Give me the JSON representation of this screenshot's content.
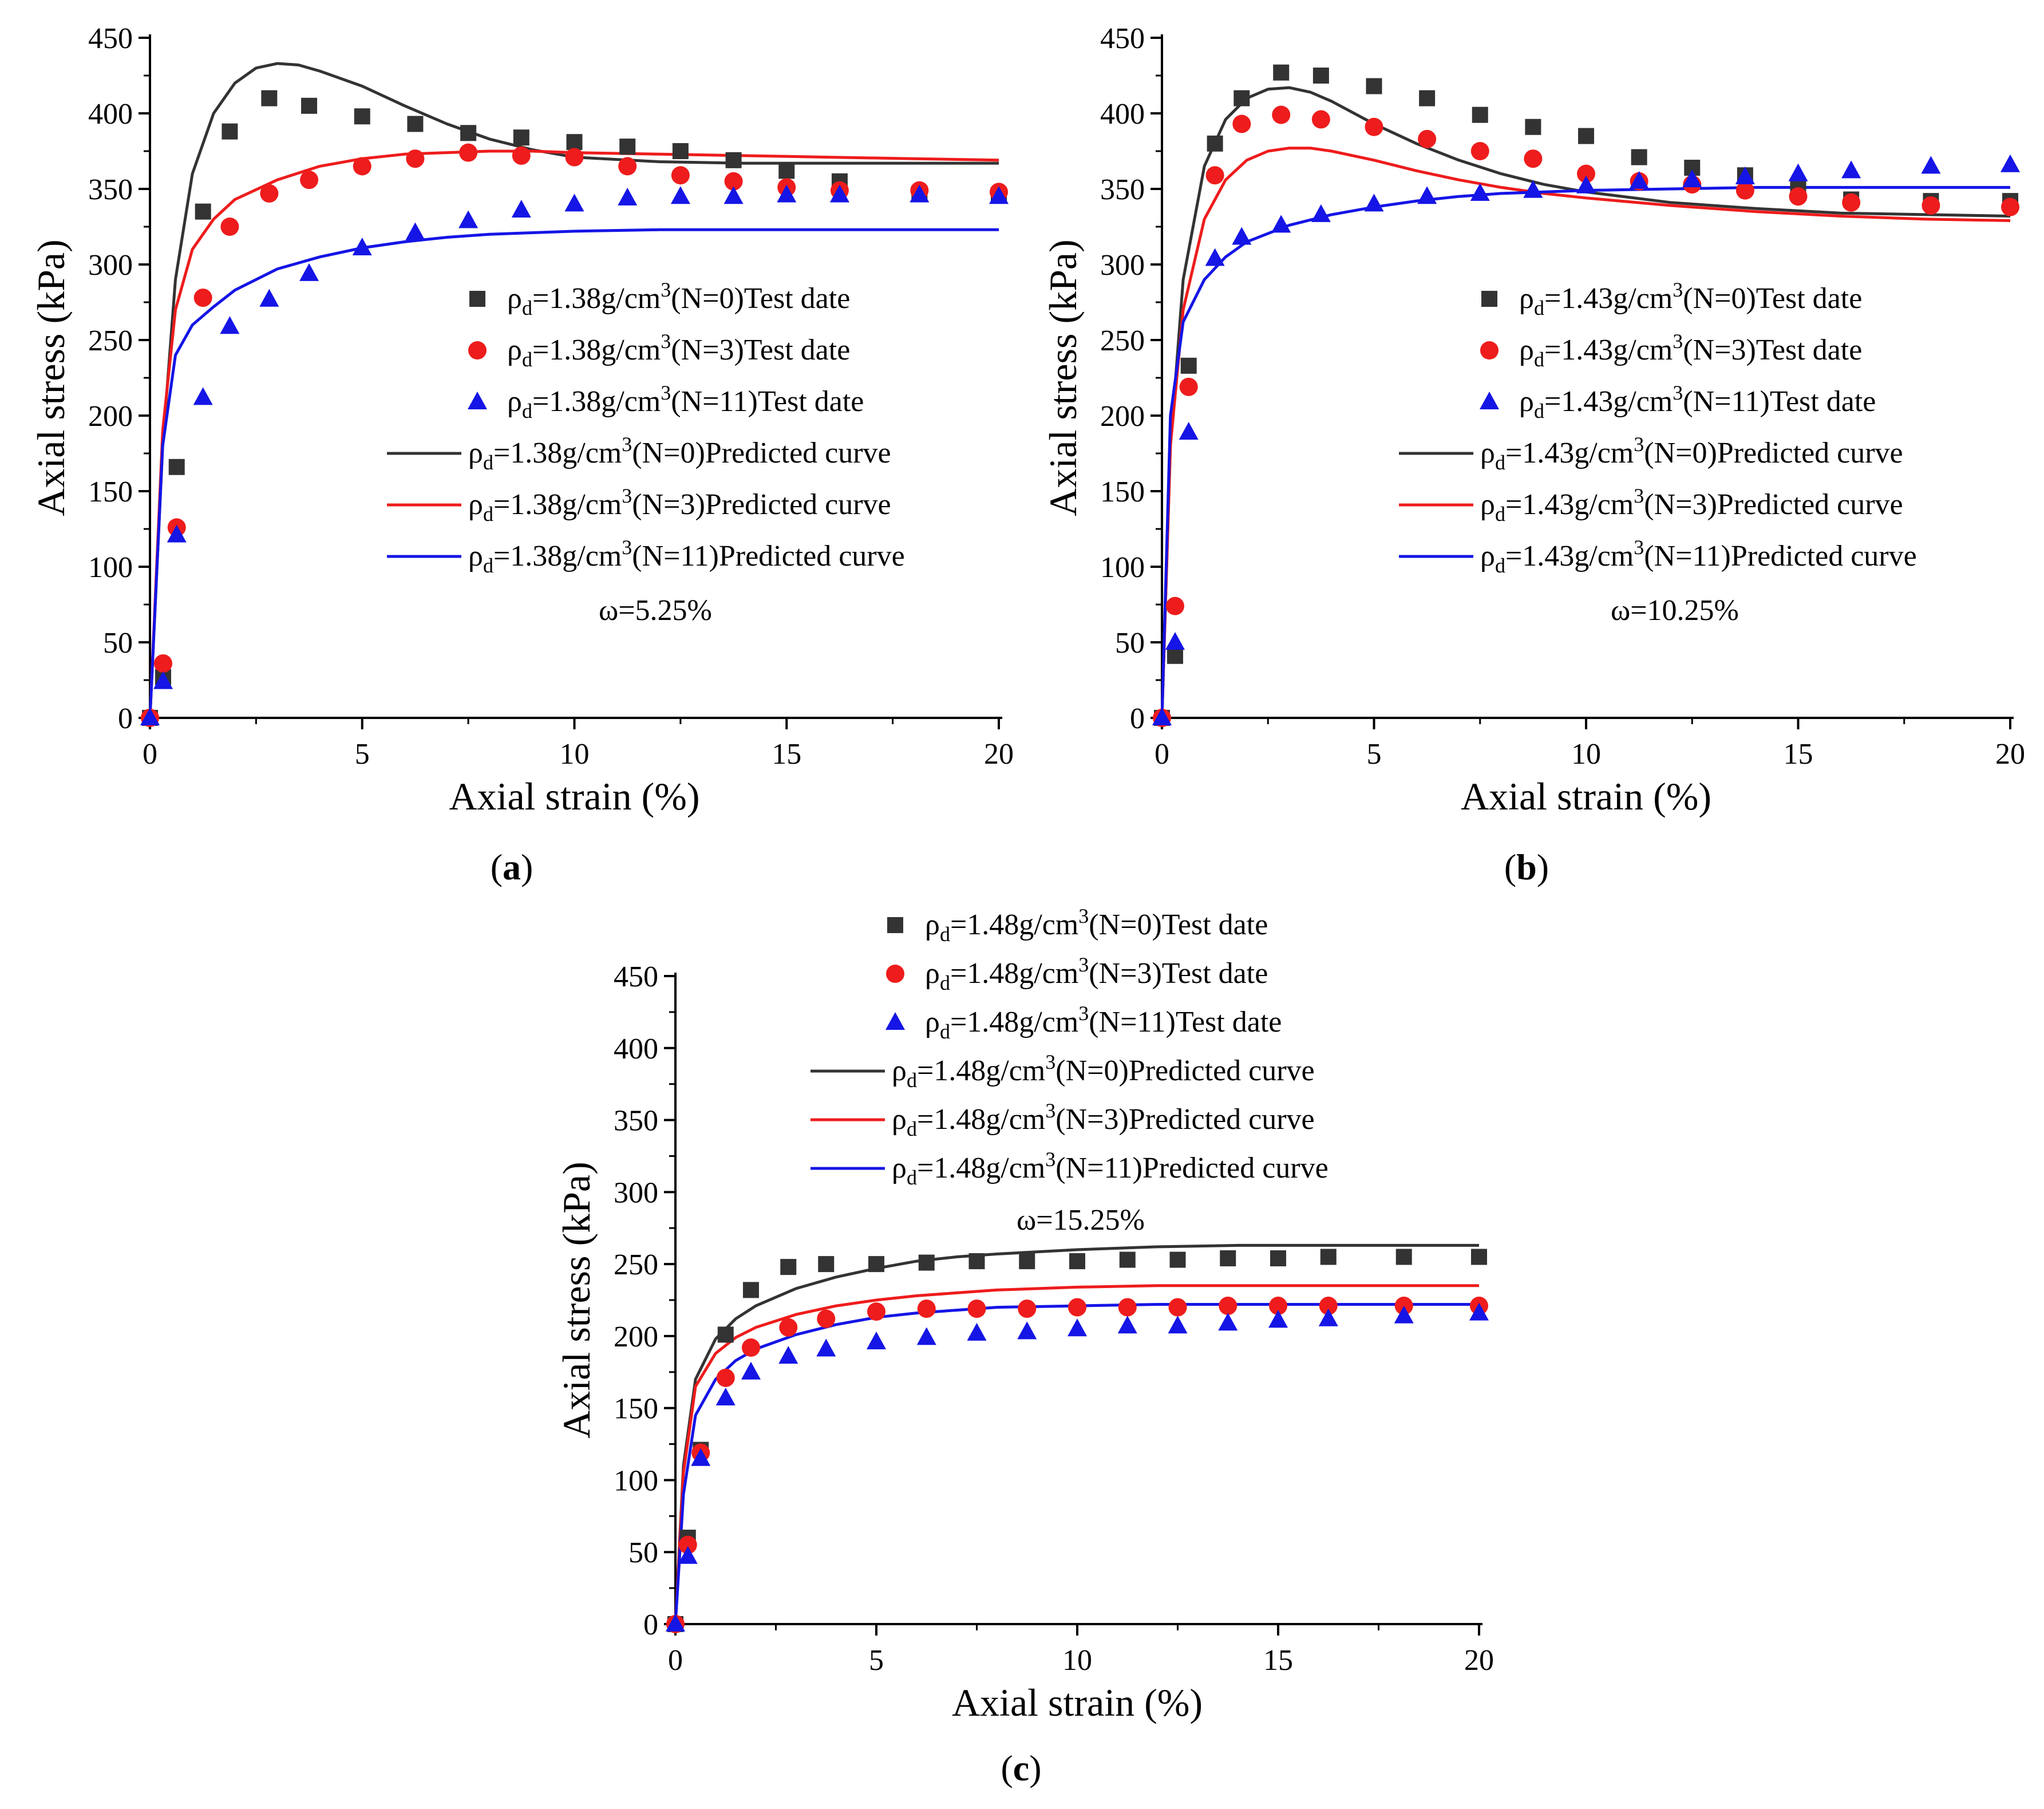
{
  "figure": {
    "panel_captions": [
      "(a)",
      "(b)",
      "(c)"
    ]
  },
  "colors": {
    "n0": "#333333",
    "n3": "#ee1c1c",
    "n11": "#1515e6",
    "axis": "#000000"
  },
  "chart_data": [
    {
      "type": "line",
      "caption": "(a)",
      "xlabel": "Axial strain (%)",
      "ylabel": "Axial stress (kPa)",
      "xlim": [
        0,
        20
      ],
      "ylim": [
        0,
        450
      ],
      "xticks": [
        0,
        5,
        10,
        15,
        20
      ],
      "yticks": [
        0,
        50,
        100,
        150,
        200,
        250,
        300,
        350,
        400,
        450
      ],
      "annotation": "ω=5.25%",
      "legend_position": "center-right",
      "series": [
        {
          "name": "ρd=1.38g/cm3(N=0)Test date",
          "kind": "scatter",
          "marker": "square",
          "color_key": "n0",
          "x": [
            0,
            0.31,
            0.63,
            1.25,
            1.88,
            2.81,
            3.75,
            5,
            6.25,
            7.5,
            8.75,
            10,
            11.25,
            12.5,
            13.75,
            15,
            16.25,
            18.13,
            20
          ],
          "y": [
            0,
            27,
            166,
            335,
            388,
            410,
            405,
            398,
            393,
            387,
            384,
            381,
            378,
            375,
            369,
            362,
            355,
            347,
            346
          ]
        },
        {
          "name": "ρd=1.38g/cm3(N=3)Test date",
          "kind": "scatter",
          "marker": "circle",
          "color_key": "n3",
          "x": [
            0,
            0.31,
            0.63,
            1.25,
            1.88,
            2.81,
            3.75,
            5,
            6.25,
            7.5,
            8.75,
            10,
            11.25,
            12.5,
            13.75,
            15,
            16.25,
            18.13,
            20
          ],
          "y": [
            0,
            36,
            126,
            278,
            325,
            347,
            356,
            365,
            370,
            374,
            372,
            371,
            365,
            359,
            355,
            351,
            349,
            349,
            348
          ]
        },
        {
          "name": "ρd=1.38g/cm3(N=11)Test date",
          "kind": "scatter",
          "marker": "triangle",
          "color_key": "n11",
          "x": [
            0,
            0.31,
            0.63,
            1.25,
            1.88,
            2.81,
            3.75,
            5,
            6.25,
            7.5,
            8.75,
            10,
            11.25,
            12.5,
            13.75,
            15,
            16.25,
            18.13,
            20
          ],
          "y": [
            0,
            24,
            121,
            212,
            259,
            277,
            294,
            311,
            321,
            329,
            336,
            340,
            344,
            345,
            345,
            346,
            346,
            346,
            345
          ]
        },
        {
          "name": "ρd=1.38g/cm3(N=0)Predicted curve",
          "kind": "line",
          "color_key": "n0",
          "x": [
            0,
            0.3,
            0.6,
            1,
            1.5,
            2,
            2.5,
            3,
            3.5,
            4,
            5,
            6,
            7,
            8,
            9,
            10,
            12,
            14,
            16,
            18,
            20
          ],
          "y": [
            0,
            180,
            290,
            360,
            400,
            420,
            430,
            433,
            432,
            428,
            418,
            405,
            393,
            383,
            376,
            371,
            368,
            367,
            367,
            367,
            367
          ]
        },
        {
          "name": "ρd=1.38g/cm3(N=3)Predicted curve",
          "kind": "line",
          "color_key": "n3",
          "x": [
            0,
            0.3,
            0.6,
            1,
            1.5,
            2,
            3,
            4,
            5,
            6,
            7,
            8,
            9,
            10,
            12,
            14,
            16,
            18,
            20
          ],
          "y": [
            0,
            190,
            270,
            310,
            330,
            343,
            356,
            365,
            370,
            373,
            374,
            375,
            375,
            374,
            373,
            372,
            371,
            370,
            369
          ]
        },
        {
          "name": "ρd=1.38g/cm3(N=11)Predicted curve",
          "kind": "line",
          "color_key": "n11",
          "x": [
            0,
            0.3,
            0.6,
            1,
            1.5,
            2,
            3,
            4,
            5,
            6,
            7,
            8,
            10,
            12,
            14,
            16,
            18,
            20
          ],
          "y": [
            0,
            180,
            240,
            260,
            272,
            283,
            297,
            305,
            311,
            315,
            318,
            320,
            322,
            323,
            323,
            323,
            323,
            323
          ]
        }
      ]
    },
    {
      "type": "line",
      "caption": "(b)",
      "xlabel": "Axial strain (%)",
      "ylabel": "Axial stress (kPa)",
      "xlim": [
        0,
        20
      ],
      "ylim": [
        0,
        450
      ],
      "xticks": [
        0,
        5,
        10,
        15,
        20
      ],
      "yticks": [
        0,
        50,
        100,
        150,
        200,
        250,
        300,
        350,
        400,
        450
      ],
      "annotation": "ω=10.25%",
      "legend_position": "center-right",
      "series": [
        {
          "name": "ρd=1.43g/cm3(N=0)Test date",
          "kind": "scatter",
          "marker": "square",
          "color_key": "n0",
          "x": [
            0,
            0.31,
            0.63,
            1.25,
            1.88,
            2.81,
            3.75,
            5,
            6.25,
            7.5,
            8.75,
            10,
            11.25,
            12.5,
            13.75,
            15,
            16.25,
            18.13,
            20
          ],
          "y": [
            0,
            41,
            233,
            380,
            410,
            427,
            425,
            418,
            410,
            399,
            391,
            385,
            371,
            364,
            359,
            350,
            343,
            342,
            342
          ]
        },
        {
          "name": "ρd=1.43g/cm3(N=3)Test date",
          "kind": "scatter",
          "marker": "circle",
          "color_key": "n3",
          "x": [
            0,
            0.31,
            0.63,
            1.25,
            1.88,
            2.81,
            3.75,
            5,
            6.25,
            7.5,
            8.75,
            10,
            11.25,
            12.5,
            13.75,
            15,
            16.25,
            18.13,
            20
          ],
          "y": [
            0,
            74,
            219,
            359,
            393,
            399,
            396,
            391,
            383,
            375,
            370,
            360,
            355,
            353,
            349,
            345,
            341,
            339,
            338
          ]
        },
        {
          "name": "ρd=1.43g/cm3(N=11)Test date",
          "kind": "scatter",
          "marker": "triangle",
          "color_key": "n11",
          "x": [
            0,
            0.31,
            0.63,
            1.25,
            1.88,
            2.81,
            3.75,
            5,
            6.25,
            7.5,
            8.75,
            10,
            11.25,
            12.5,
            13.75,
            15,
            16.25,
            18.13,
            20
          ],
          "y": [
            0,
            50,
            189,
            304,
            318,
            326,
            333,
            340,
            345,
            347,
            349,
            352,
            355,
            356,
            358,
            360,
            362,
            365,
            366
          ]
        },
        {
          "name": "ρd=1.43g/cm3(N=0)Predicted curve",
          "kind": "line",
          "color_key": "n0",
          "x": [
            0,
            0.2,
            0.5,
            1,
            1.5,
            2,
            2.5,
            3,
            3.5,
            4,
            5,
            6,
            7,
            8,
            9,
            10,
            12,
            14,
            16,
            18,
            20
          ],
          "y": [
            0,
            180,
            290,
            365,
            396,
            410,
            416,
            417,
            414,
            408,
            393,
            380,
            369,
            360,
            353,
            348,
            341,
            337,
            334,
            333,
            332
          ]
        },
        {
          "name": "ρd=1.43g/cm3(N=3)Predicted curve",
          "kind": "line",
          "color_key": "n3",
          "x": [
            0,
            0.2,
            0.5,
            1,
            1.5,
            2,
            2.5,
            3,
            3.5,
            4,
            5,
            6,
            7,
            8,
            9,
            10,
            12,
            14,
            16,
            18,
            20
          ],
          "y": [
            0,
            180,
            270,
            330,
            356,
            369,
            375,
            377,
            377,
            375,
            369,
            362,
            356,
            351,
            347,
            344,
            339,
            335,
            332,
            330,
            329
          ]
        },
        {
          "name": "ρd=1.43g/cm3(N=11)Predicted curve",
          "kind": "line",
          "color_key": "n11",
          "x": [
            0,
            0.2,
            0.5,
            1,
            1.5,
            2,
            3,
            4,
            5,
            6,
            7,
            8,
            9,
            10,
            12,
            14,
            16,
            18,
            20
          ],
          "y": [
            0,
            200,
            262,
            290,
            305,
            315,
            326,
            333,
            338,
            342,
            345,
            347,
            348,
            349,
            350,
            351,
            351,
            351,
            351
          ]
        }
      ]
    },
    {
      "type": "line",
      "caption": "(c)",
      "xlabel": "Axial strain (%)",
      "ylabel": "Axial stress (kPa)",
      "xlim": [
        0,
        20
      ],
      "ylim": [
        0,
        450
      ],
      "xticks": [
        0,
        5,
        10,
        15,
        20
      ],
      "yticks": [
        0,
        50,
        100,
        150,
        200,
        250,
        300,
        350,
        400,
        450
      ],
      "annotation": "ω=15.25%",
      "legend_position": "top-center",
      "series": [
        {
          "name": "ρd=1.48g/cm3(N=0)Test date",
          "kind": "scatter",
          "marker": "square",
          "color_key": "n0",
          "x": [
            0,
            0.31,
            0.63,
            1.25,
            1.88,
            2.81,
            3.75,
            5,
            6.25,
            7.5,
            8.75,
            10,
            11.25,
            12.5,
            13.75,
            15,
            16.25,
            18.13,
            20
          ],
          "y": [
            0,
            60,
            121,
            201,
            232,
            248,
            250,
            250,
            251,
            252,
            252,
            252,
            253,
            253,
            254,
            254,
            255,
            255,
            255
          ]
        },
        {
          "name": "ρd=1.48g/cm3(N=3)Test date",
          "kind": "scatter",
          "marker": "circle",
          "color_key": "n3",
          "x": [
            0,
            0.31,
            0.63,
            1.25,
            1.88,
            2.81,
            3.75,
            5,
            6.25,
            7.5,
            8.75,
            10,
            11.25,
            12.5,
            13.75,
            15,
            16.25,
            18.13,
            20
          ],
          "y": [
            0,
            55,
            119,
            171,
            192,
            206,
            212,
            217,
            219,
            219,
            219,
            220,
            220,
            220,
            221,
            221,
            221,
            221,
            221
          ]
        },
        {
          "name": "ρd=1.48g/cm3(N=11)Test date",
          "kind": "scatter",
          "marker": "triangle",
          "color_key": "n11",
          "x": [
            0,
            0.31,
            0.63,
            1.25,
            1.88,
            2.81,
            3.75,
            5,
            6.25,
            7.5,
            8.75,
            10,
            11.25,
            12.5,
            13.75,
            15,
            16.25,
            18.13,
            20
          ],
          "y": [
            0,
            47,
            115,
            157,
            175,
            186,
            191,
            196,
            199,
            202,
            203,
            205,
            207,
            207,
            209,
            211,
            212,
            214,
            216
          ]
        },
        {
          "name": "ρd=1.48g/cm3(N=0)Predicted curve",
          "kind": "line",
          "color_key": "n0",
          "x": [
            0,
            0.2,
            0.5,
            1,
            1.5,
            2,
            3,
            4,
            5,
            6,
            7,
            8,
            10,
            12,
            14,
            16,
            18,
            20
          ],
          "y": [
            0,
            110,
            170,
            198,
            212,
            221,
            233,
            241,
            247,
            252,
            255,
            257,
            260,
            262,
            263,
            263,
            263,
            263
          ]
        },
        {
          "name": "ρd=1.48g/cm3(N=3)Predicted curve",
          "kind": "line",
          "color_key": "n3",
          "x": [
            0,
            0.2,
            0.5,
            1,
            1.5,
            2,
            3,
            4,
            5,
            6,
            7,
            8,
            10,
            12,
            14,
            16,
            18,
            20
          ],
          "y": [
            0,
            105,
            165,
            188,
            199,
            206,
            215,
            221,
            225,
            228,
            230,
            232,
            234,
            235,
            235,
            235,
            235,
            235
          ]
        },
        {
          "name": "ρd=1.48g/cm3(N=11)Predicted curve",
          "kind": "line",
          "color_key": "n11",
          "x": [
            0,
            0.2,
            0.5,
            1,
            1.5,
            2,
            3,
            4,
            5,
            6,
            7,
            8,
            10,
            12,
            14,
            16,
            18,
            20
          ],
          "y": [
            0,
            90,
            145,
            170,
            183,
            191,
            201,
            208,
            213,
            216,
            218,
            220,
            221,
            222,
            222,
            222,
            222,
            222
          ]
        }
      ]
    }
  ]
}
